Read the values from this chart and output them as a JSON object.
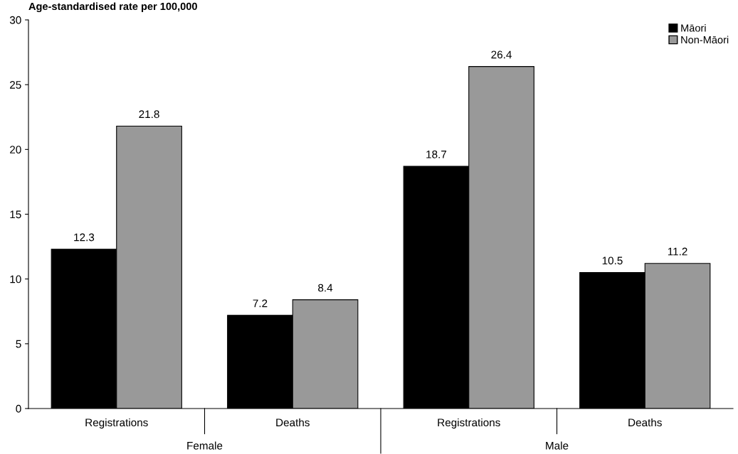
{
  "chart_data": {
    "type": "bar",
    "ylabel": "Age-standardised rate per 100,000",
    "categories": [
      "Registrations",
      "Deaths",
      "Registrations",
      "Deaths"
    ],
    "series": [
      {
        "name": "Māori",
        "color": "#000000",
        "values": [
          12.3,
          7.2,
          18.7,
          10.5
        ]
      },
      {
        "name": "Non-Māori",
        "color": "#999999",
        "values": [
          21.8,
          8.4,
          26.4,
          11.2
        ]
      }
    ],
    "ylim": [
      0,
      30
    ],
    "yticks": [
      0,
      5,
      10,
      15,
      20,
      25,
      30
    ],
    "grid": false,
    "legend": "top right",
    "data_labels": true,
    "annotations": [
      "Female",
      "Male"
    ]
  }
}
